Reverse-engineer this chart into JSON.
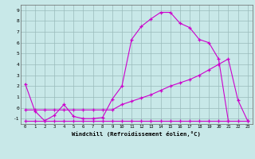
{
  "xlabel": "Windchill (Refroidissement éolien,°C)",
  "xlim": [
    -0.5,
    23.5
  ],
  "ylim": [
    -1.5,
    9.5
  ],
  "yticks": [
    -1,
    0,
    1,
    2,
    3,
    4,
    5,
    6,
    7,
    8,
    9
  ],
  "xticks": [
    0,
    1,
    2,
    3,
    4,
    5,
    6,
    7,
    8,
    9,
    10,
    11,
    12,
    13,
    14,
    15,
    16,
    17,
    18,
    19,
    20,
    21,
    22,
    23
  ],
  "bg_color": "#c8e8e8",
  "line_color": "#cc00cc",
  "grid_color": "#99bbbb",
  "line1_x": [
    0,
    1,
    2,
    3,
    4,
    5,
    6,
    7,
    8,
    9,
    10,
    11,
    12,
    13,
    14,
    15,
    16,
    17,
    18,
    19,
    20,
    21
  ],
  "line1_y": [
    2.2,
    -0.3,
    -1.2,
    -0.7,
    0.3,
    -0.8,
    -1.0,
    -1.0,
    -0.9,
    0.8,
    2.0,
    6.3,
    7.5,
    8.2,
    8.8,
    8.8,
    7.8,
    7.4,
    6.3,
    6.0,
    4.5,
    -1.2
  ],
  "line2_x": [
    0,
    1,
    2,
    3,
    4,
    5,
    6,
    7,
    8,
    9,
    10,
    11,
    12,
    13,
    14,
    15,
    16,
    17,
    18,
    19,
    20,
    21,
    22,
    23
  ],
  "line2_y": [
    -0.2,
    -0.2,
    -0.2,
    -0.2,
    -0.2,
    -0.2,
    -0.2,
    -0.2,
    -0.2,
    -0.2,
    0.3,
    0.6,
    0.9,
    1.2,
    1.6,
    2.0,
    2.3,
    2.6,
    3.0,
    3.5,
    4.0,
    4.5,
    0.7,
    -1.2
  ],
  "line3_x": [
    0,
    1,
    2,
    3,
    4,
    5,
    6,
    7,
    8,
    9,
    10,
    11,
    12,
    13,
    14,
    15,
    16,
    17,
    18,
    19,
    20,
    21,
    22,
    23
  ],
  "line3_y": [
    -1.2,
    -1.2,
    -1.2,
    -1.2,
    -1.2,
    -1.2,
    -1.2,
    -1.2,
    -1.2,
    -1.2,
    -1.2,
    -1.2,
    -1.2,
    -1.2,
    -1.2,
    -1.2,
    -1.2,
    -1.2,
    -1.2,
    -1.2,
    -1.2,
    -1.2,
    -1.2,
    -1.2
  ]
}
